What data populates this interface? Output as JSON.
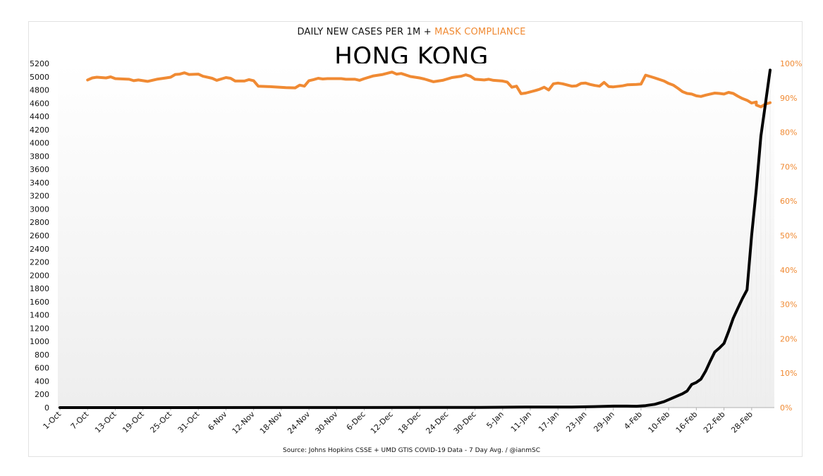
{
  "header": {
    "subtitle_part1": "DAILY NEW CASES PER 1M + ",
    "subtitle_part2": "MASK COMPLIANCE",
    "title": "HONG KONG"
  },
  "footer": {
    "source": "Source: Johns Hopkins CSSE + UMD GTIS COVID-19 Data - 7 Day Avg. / @ianmSC"
  },
  "colors": {
    "cases": "#000000",
    "mask": "#f08a33",
    "area_fill": "#ededed"
  },
  "chart_data": {
    "type": "line",
    "left_axis": {
      "range": [
        0,
        5200
      ],
      "step": 200
    },
    "right_axis": {
      "range": [
        0,
        100
      ],
      "ticks": [
        "0%",
        "10%",
        "20%",
        "30%",
        "40%",
        "50%",
        "60%",
        "70%",
        "80%",
        "90%",
        "100%"
      ]
    },
    "x_axis": {
      "range": [
        "1-Oct",
        "4-Mar"
      ],
      "tick_labels": [
        "1-Oct",
        "7-Oct",
        "13-Oct",
        "19-Oct",
        "25-Oct",
        "31-Oct",
        "6-Nov",
        "12-Nov",
        "18-Nov",
        "24-Nov",
        "30-Nov",
        "6-Dec",
        "12-Dec",
        "18-Dec",
        "24-Dec",
        "30-Dec",
        "5-Jan",
        "11-Jan",
        "17-Jan",
        "23-Jan",
        "29-Jan",
        "4-Feb",
        "10-Feb",
        "16-Feb",
        "22-Feb",
        "28-Feb"
      ]
    },
    "series": [
      {
        "name": "DAILY NEW CASES PER 1M",
        "axis": "left",
        "points": [
          [
            "1-Oct",
            0
          ],
          [
            "15-Nov",
            1
          ],
          [
            "31-Dec",
            3
          ],
          [
            "10-Jan",
            8
          ],
          [
            "20-Jan",
            8
          ],
          [
            "25-Jan",
            15
          ],
          [
            "29-Jan",
            22
          ],
          [
            "1-Feb",
            22
          ],
          [
            "3-Feb",
            20
          ],
          [
            "5-Feb",
            30
          ],
          [
            "7-Feb",
            50
          ],
          [
            "9-Feb",
            90
          ],
          [
            "11-Feb",
            150
          ],
          [
            "13-Feb",
            210
          ],
          [
            "14-Feb",
            250
          ],
          [
            "15-Feb",
            350
          ],
          [
            "16-Feb",
            380
          ],
          [
            "17-Feb",
            430
          ],
          [
            "18-Feb",
            550
          ],
          [
            "19-Feb",
            700
          ],
          [
            "20-Feb",
            840
          ],
          [
            "21-Feb",
            900
          ],
          [
            "22-Feb",
            970
          ],
          [
            "23-Feb",
            1150
          ],
          [
            "24-Feb",
            1350
          ],
          [
            "25-Feb",
            1500
          ],
          [
            "26-Feb",
            1650
          ],
          [
            "27-Feb",
            1780
          ],
          [
            "28-Feb",
            2600
          ],
          [
            "1-Mar",
            3300
          ],
          [
            "2-Mar",
            4100
          ],
          [
            "3-Mar",
            4600
          ],
          [
            "4-Mar",
            5100
          ]
        ]
      },
      {
        "name": "MASK COMPLIANCE",
        "axis": "right",
        "points": [
          [
            "7-Oct",
            95.2
          ],
          [
            "8-Oct",
            95.8
          ],
          [
            "9-Oct",
            96
          ],
          [
            "11-Oct",
            95.8
          ],
          [
            "12-Oct",
            96.1
          ],
          [
            "13-Oct",
            95.6
          ],
          [
            "16-Oct",
            95.4
          ],
          [
            "17-Oct",
            95
          ],
          [
            "18-Oct",
            95.2
          ],
          [
            "20-Oct",
            94.8
          ],
          [
            "22-Oct",
            95.4
          ],
          [
            "24-Oct",
            95.8
          ],
          [
            "25-Oct",
            96
          ],
          [
            "26-Oct",
            96.8
          ],
          [
            "27-Oct",
            96.9
          ],
          [
            "28-Oct",
            97.3
          ],
          [
            "29-Oct",
            96.8
          ],
          [
            "31-Oct",
            96.9
          ],
          [
            "1-Nov",
            96.3
          ],
          [
            "3-Nov",
            95.7
          ],
          [
            "4-Nov",
            95.1
          ],
          [
            "6-Nov",
            95.9
          ],
          [
            "7-Nov",
            95.7
          ],
          [
            "8-Nov",
            94.9
          ],
          [
            "10-Nov",
            94.9
          ],
          [
            "11-Nov",
            95.3
          ],
          [
            "12-Nov",
            95
          ],
          [
            "13-Nov",
            93.4
          ],
          [
            "15-Nov",
            93.3
          ],
          [
            "19-Nov",
            93
          ],
          [
            "21-Nov",
            92.9
          ],
          [
            "22-Nov",
            93.7
          ],
          [
            "23-Nov",
            93.4
          ],
          [
            "24-Nov",
            95
          ],
          [
            "25-Nov",
            95.3
          ],
          [
            "26-Nov",
            95.7
          ],
          [
            "27-Nov",
            95.5
          ],
          [
            "28-Nov",
            95.6
          ],
          [
            "30-Nov",
            95.6
          ],
          [
            "1-Dec",
            95.6
          ],
          [
            "2-Dec",
            95.4
          ],
          [
            "4-Dec",
            95.4
          ],
          [
            "5-Dec",
            95.1
          ],
          [
            "6-Dec",
            95.6
          ],
          [
            "8-Dec",
            96.4
          ],
          [
            "10-Dec",
            96.8
          ],
          [
            "12-Dec",
            97.5
          ],
          [
            "13-Dec",
            96.9
          ],
          [
            "14-Dec",
            97.1
          ],
          [
            "16-Dec",
            96.2
          ],
          [
            "18-Dec",
            95.8
          ],
          [
            "19-Dec",
            95.5
          ],
          [
            "20-Dec",
            95.1
          ],
          [
            "21-Dec",
            94.7
          ],
          [
            "22-Dec",
            94.9
          ],
          [
            "23-Dec",
            95.1
          ],
          [
            "25-Dec",
            95.9
          ],
          [
            "27-Dec",
            96.3
          ],
          [
            "28-Dec",
            96.7
          ],
          [
            "29-Dec",
            96.3
          ],
          [
            "30-Dec",
            95.4
          ],
          [
            "1-Jan",
            95.2
          ],
          [
            "2-Jan",
            95.4
          ],
          [
            "3-Jan",
            95.1
          ],
          [
            "5-Jan",
            94.9
          ],
          [
            "6-Jan",
            94.6
          ],
          [
            "7-Jan",
            93.1
          ],
          [
            "8-Jan",
            93.4
          ],
          [
            "9-Jan",
            91.2
          ],
          [
            "10-Jan",
            91.4
          ],
          [
            "12-Jan",
            92.1
          ],
          [
            "13-Jan",
            92.5
          ],
          [
            "14-Jan",
            93.1
          ],
          [
            "15-Jan",
            92.3
          ],
          [
            "16-Jan",
            94.1
          ],
          [
            "17-Jan",
            94.3
          ],
          [
            "18-Jan",
            94.1
          ],
          [
            "20-Jan",
            93.4
          ],
          [
            "21-Jan",
            93.5
          ],
          [
            "22-Jan",
            94.2
          ],
          [
            "23-Jan",
            94.3
          ],
          [
            "24-Jan",
            93.9
          ],
          [
            "25-Jan",
            93.6
          ],
          [
            "26-Jan",
            93.4
          ],
          [
            "27-Jan",
            94.5
          ],
          [
            "28-Jan",
            93.3
          ],
          [
            "29-Jan",
            93.2
          ],
          [
            "31-Jan",
            93.5
          ],
          [
            "1-Feb",
            93.8
          ],
          [
            "3-Feb",
            93.9
          ],
          [
            "4-Feb",
            94
          ],
          [
            "5-Feb",
            96.6
          ],
          [
            "6-Feb",
            96.2
          ],
          [
            "7-Feb",
            95.8
          ],
          [
            "9-Feb",
            94.9
          ],
          [
            "10-Feb",
            94.2
          ],
          [
            "11-Feb",
            93.7
          ],
          [
            "12-Feb",
            92.8
          ],
          [
            "13-Feb",
            91.8
          ],
          [
            "14-Feb",
            91.3
          ],
          [
            "15-Feb",
            91.1
          ],
          [
            "16-Feb",
            90.6
          ],
          [
            "17-Feb",
            90.4
          ],
          [
            "18-Feb",
            90.8
          ],
          [
            "19-Feb",
            91.1
          ],
          [
            "20-Feb",
            91.4
          ],
          [
            "21-Feb",
            91.3
          ],
          [
            "22-Feb",
            91.1
          ],
          [
            "23-Feb",
            91.6
          ],
          [
            "24-Feb",
            91.3
          ],
          [
            "25-Feb",
            90.5
          ],
          [
            "26-Feb",
            89.8
          ],
          [
            "27-Feb",
            89.3
          ],
          [
            "28-Feb",
            88.5
          ],
          [
            "29-Feb",
            88.8
          ],
          [
            "1-Mar",
            87.9
          ],
          [
            "2-Mar",
            87.4
          ],
          [
            "3-Mar",
            88.2
          ],
          [
            "4-Mar",
            88.6
          ]
        ]
      }
    ]
  }
}
